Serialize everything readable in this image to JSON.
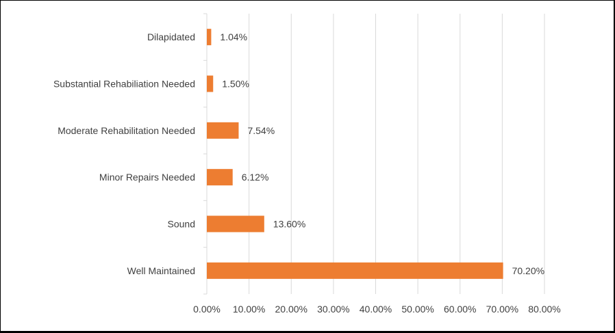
{
  "chart_data": {
    "type": "bar",
    "orientation": "horizontal",
    "categories": [
      "Dilapidated",
      "Substantial Rehabiliation Needed",
      "Moderate Rehabilitation Needed",
      "Minor Repairs Needed",
      "Sound",
      "Well Maintained"
    ],
    "values": [
      1.04,
      1.5,
      7.54,
      6.12,
      13.6,
      70.2
    ],
    "data_labels": [
      "1.04%",
      "1.50%",
      "7.54%",
      "6.12%",
      "13.60%",
      "70.20%"
    ],
    "x_ticks": [
      "0.00%",
      "10.00%",
      "20.00%",
      "30.00%",
      "40.00%",
      "50.00%",
      "60.00%",
      "70.00%",
      "80.00%"
    ],
    "xlim": [
      0,
      80
    ],
    "title": "",
    "xlabel": "",
    "ylabel": "",
    "grid": "vertical",
    "legend": "none",
    "bar_color": "#ED7D31",
    "grid_color": "#D9D9D9",
    "text_color": "#404040"
  }
}
